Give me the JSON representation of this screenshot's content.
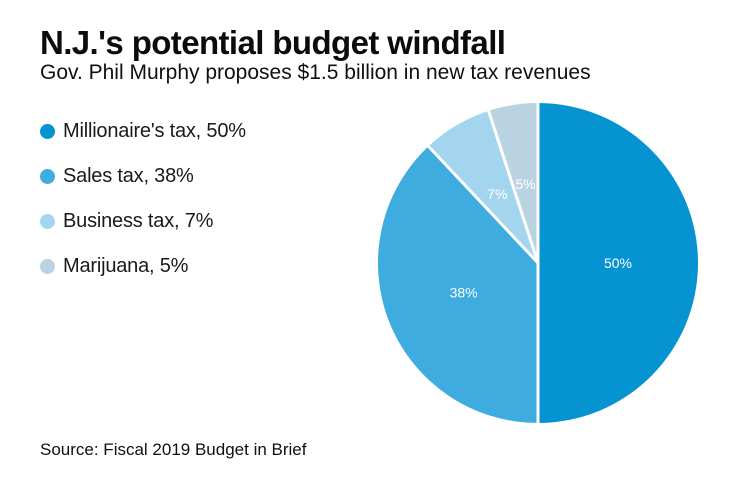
{
  "header": {
    "title": "N.J.'s potential budget windfall",
    "subtitle": "Gov. Phil Murphy proposes $1.5 billion in new tax revenues"
  },
  "legend": {
    "items": [
      {
        "label": "Millionaire's tax, 50%",
        "color": "#0593d2"
      },
      {
        "label": "Sales tax, 38%",
        "color": "#3eacdf"
      },
      {
        "label": "Business tax, 7%",
        "color": "#a3d5ef"
      },
      {
        "label": "Marijuana, 5%",
        "color": "#bad3e3"
      }
    ]
  },
  "footer": {
    "source": "Source: Fiscal 2019 Budget in Brief"
  },
  "chart_data": {
    "type": "pie",
    "title": "N.J.'s potential budget windfall",
    "subtitle": "Gov. Phil Murphy proposes $1.5 billion in new tax revenues",
    "start_angle_deg": 0,
    "direction": "clockwise",
    "slice_gap_color": "#ffffff",
    "data_label_color": "#ffffff",
    "legend_position": "left",
    "slices": [
      {
        "label": "Millionaire's tax",
        "value": 50,
        "data_label": "50%",
        "color": "#0593d2"
      },
      {
        "label": "Sales tax",
        "value": 38,
        "data_label": "38%",
        "color": "#3eacdf"
      },
      {
        "label": "Business tax",
        "value": 7,
        "data_label": "7%",
        "color": "#a3d5ef"
      },
      {
        "label": "Marijuana",
        "value": 5,
        "data_label": "5%",
        "color": "#bad3e3"
      }
    ],
    "source": "Source: Fiscal 2019 Budget in Brief"
  }
}
